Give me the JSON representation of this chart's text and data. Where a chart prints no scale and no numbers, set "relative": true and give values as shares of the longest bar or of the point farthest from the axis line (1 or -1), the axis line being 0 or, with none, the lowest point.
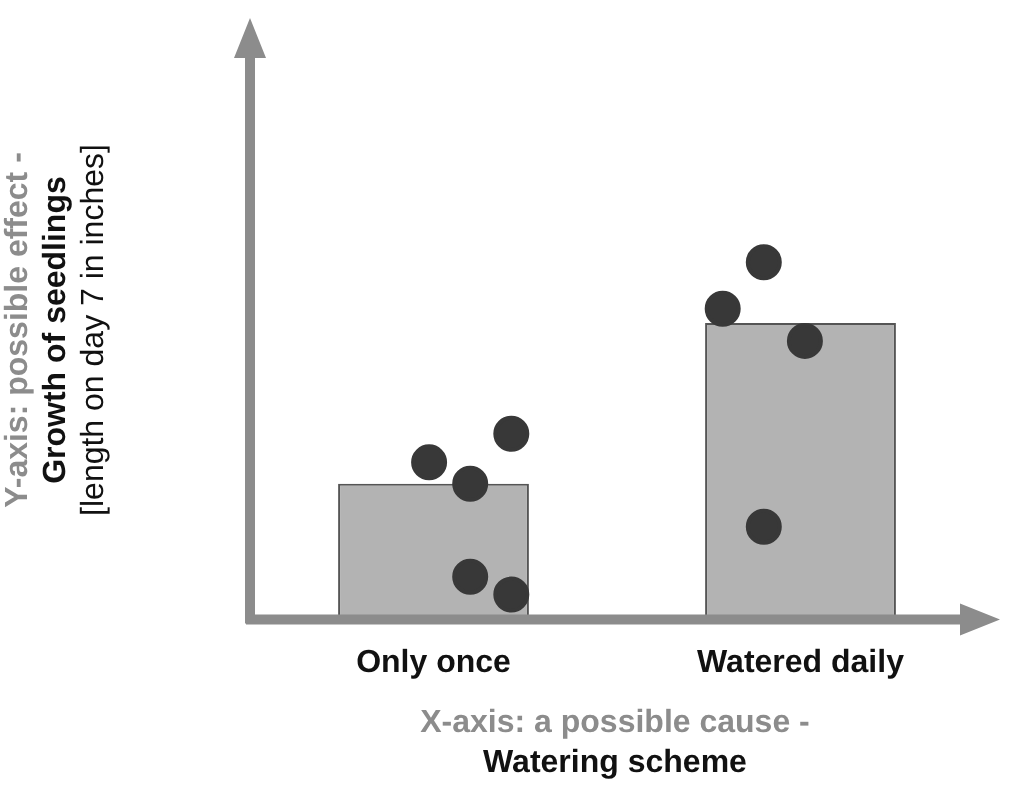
{
  "chart_data": {
    "type": "bar",
    "relative": true,
    "categories": [
      "Only once",
      "Watered daily"
    ],
    "xlabel": "X-axis: a possible cause -\nWatering scheme",
    "ylabel": "Y-axis: possible effect -\nGrowth of seedlings\n[length on day 7 in inches]",
    "grid": false,
    "legend": false,
    "series": [
      {
        "type": "bar",
        "color": "#b3b3b3",
        "values": [
          0.38,
          0.83
        ]
      },
      {
        "type": "scatter",
        "color": "#383838",
        "marker": "circle",
        "x": [
          "Only once",
          "Only once",
          "Only once",
          "Only once",
          "Only once",
          "Watered daily",
          "Watered daily",
          "Watered daily",
          "Watered daily"
        ],
        "values": [
          0.38,
          0.52,
          0.44,
          0.12,
          0.07,
          1,
          0.78,
          0.87,
          0.26
        ]
      }
    ]
  }
}
